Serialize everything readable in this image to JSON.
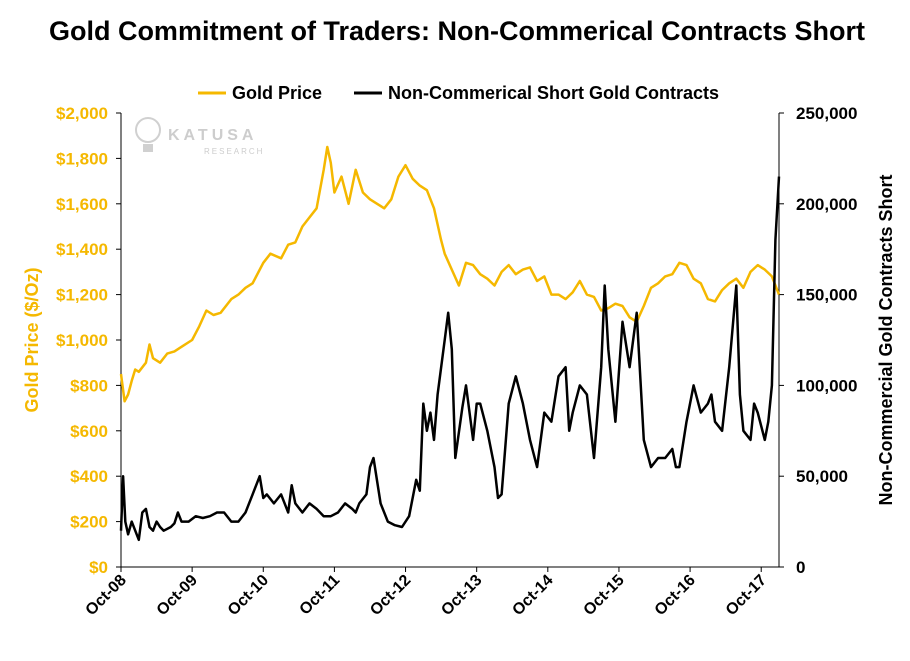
{
  "chart_data": {
    "type": "line",
    "title": "Gold Commitment of Traders: Non-Commerical Contracts Short",
    "watermark": {
      "brand": "KATUSA",
      "sub": "RESEARCH"
    },
    "colors": {
      "gold": "#F5B800",
      "contracts": "#000000",
      "axis": "#000000"
    },
    "x_range": [
      2008.75,
      2018.0
    ],
    "x_ticks": [
      {
        "label": "Oct-08",
        "value": 2008.75
      },
      {
        "label": "Oct-09",
        "value": 2009.75
      },
      {
        "label": "Oct-10",
        "value": 2010.75
      },
      {
        "label": "Oct-11",
        "value": 2011.75
      },
      {
        "label": "Oct-12",
        "value": 2012.75
      },
      {
        "label": "Oct-13",
        "value": 2013.75
      },
      {
        "label": "Oct-14",
        "value": 2014.75
      },
      {
        "label": "Oct-15",
        "value": 2015.75
      },
      {
        "label": "Oct-16",
        "value": 2016.75
      },
      {
        "label": "Oct-17",
        "value": 2017.75
      }
    ],
    "y_left": {
      "label": "Gold Price ($/Oz)",
      "range": [
        0,
        2000
      ],
      "ticks": [
        {
          "value": 0,
          "label": "$0"
        },
        {
          "value": 200,
          "label": "$200"
        },
        {
          "value": 400,
          "label": "$400"
        },
        {
          "value": 600,
          "label": "$600"
        },
        {
          "value": 800,
          "label": "$800"
        },
        {
          "value": 1000,
          "label": "$1,000"
        },
        {
          "value": 1200,
          "label": "$1,200"
        },
        {
          "value": 1400,
          "label": "$1,400"
        },
        {
          "value": 1600,
          "label": "$1,600"
        },
        {
          "value": 1800,
          "label": "$1,800"
        },
        {
          "value": 2000,
          "label": "$2,000"
        }
      ]
    },
    "y_right": {
      "label": "Non-Commercial Gold Contracts Short",
      "range": [
        0,
        250000
      ],
      "ticks": [
        {
          "value": 0,
          "label": "0"
        },
        {
          "value": 50000,
          "label": "50,000"
        },
        {
          "value": 100000,
          "label": "100,000"
        },
        {
          "value": 150000,
          "label": "150,000"
        },
        {
          "value": 200000,
          "label": "200,000"
        },
        {
          "value": 250000,
          "label": "250,000"
        }
      ]
    },
    "legend_position": "top-center",
    "series": [
      {
        "name": "Gold Price",
        "axis": "left",
        "color": "#F5B800",
        "x": [
          2008.75,
          2008.8,
          2008.85,
          2008.9,
          2008.95,
          2009.0,
          2009.1,
          2009.15,
          2009.2,
          2009.3,
          2009.4,
          2009.5,
          2009.6,
          2009.75,
          2009.85,
          2009.95,
          2010.05,
          2010.15,
          2010.3,
          2010.4,
          2010.5,
          2010.6,
          2010.75,
          2010.85,
          2011.0,
          2011.1,
          2011.2,
          2011.3,
          2011.4,
          2011.5,
          2011.6,
          2011.65,
          2011.7,
          2011.75,
          2011.85,
          2011.95,
          2012.05,
          2012.15,
          2012.25,
          2012.35,
          2012.45,
          2012.55,
          2012.65,
          2012.75,
          2012.85,
          2012.95,
          2013.05,
          2013.15,
          2013.25,
          2013.3,
          2013.4,
          2013.5,
          2013.6,
          2013.7,
          2013.8,
          2013.9,
          2014.0,
          2014.1,
          2014.2,
          2014.3,
          2014.4,
          2014.5,
          2014.6,
          2014.7,
          2014.8,
          2014.9,
          2015.0,
          2015.1,
          2015.2,
          2015.3,
          2015.4,
          2015.5,
          2015.6,
          2015.7,
          2015.8,
          2015.9,
          2016.0,
          2016.1,
          2016.2,
          2016.3,
          2016.4,
          2016.5,
          2016.6,
          2016.7,
          2016.8,
          2016.9,
          2017.0,
          2017.1,
          2017.2,
          2017.3,
          2017.4,
          2017.5,
          2017.6,
          2017.7,
          2017.8,
          2017.9,
          2018.0
        ],
        "values": [
          850,
          730,
          760,
          820,
          870,
          860,
          900,
          980,
          920,
          900,
          940,
          950,
          970,
          1000,
          1060,
          1130,
          1110,
          1120,
          1180,
          1200,
          1230,
          1250,
          1340,
          1380,
          1360,
          1420,
          1430,
          1500,
          1540,
          1580,
          1750,
          1850,
          1780,
          1650,
          1720,
          1600,
          1750,
          1650,
          1620,
          1600,
          1580,
          1620,
          1720,
          1770,
          1710,
          1680,
          1660,
          1580,
          1440,
          1380,
          1310,
          1240,
          1340,
          1330,
          1290,
          1270,
          1240,
          1300,
          1330,
          1290,
          1310,
          1320,
          1260,
          1280,
          1200,
          1200,
          1180,
          1210,
          1260,
          1200,
          1190,
          1130,
          1140,
          1160,
          1150,
          1100,
          1080,
          1150,
          1230,
          1250,
          1280,
          1290,
          1340,
          1330,
          1270,
          1250,
          1180,
          1170,
          1220,
          1250,
          1270,
          1230,
          1300,
          1330,
          1310,
          1280,
          1200
        ]
      },
      {
        "name": "Non-Commerical Short Gold Contracts",
        "axis": "right",
        "color": "#000000",
        "x": [
          2008.75,
          2008.78,
          2008.81,
          2008.85,
          2008.9,
          2009.0,
          2009.05,
          2009.1,
          2009.15,
          2009.2,
          2009.25,
          2009.3,
          2009.35,
          2009.45,
          2009.5,
          2009.55,
          2009.6,
          2009.7,
          2009.8,
          2009.9,
          2010.0,
          2010.1,
          2010.2,
          2010.3,
          2010.4,
          2010.5,
          2010.6,
          2010.7,
          2010.75,
          2010.8,
          2010.9,
          2011.0,
          2011.1,
          2011.15,
          2011.2,
          2011.3,
          2011.4,
          2011.5,
          2011.6,
          2011.7,
          2011.8,
          2011.9,
          2012.0,
          2012.05,
          2012.1,
          2012.2,
          2012.25,
          2012.3,
          2012.4,
          2012.5,
          2012.6,
          2012.7,
          2012.8,
          2012.9,
          2012.95,
          2013.0,
          2013.05,
          2013.1,
          2013.15,
          2013.2,
          2013.3,
          2013.35,
          2013.4,
          2013.45,
          2013.55,
          2013.6,
          2013.7,
          2013.75,
          2013.8,
          2013.9,
          2014.0,
          2014.05,
          2014.1,
          2014.2,
          2014.3,
          2014.4,
          2014.5,
          2014.6,
          2014.7,
          2014.8,
          2014.9,
          2015.0,
          2015.05,
          2015.1,
          2015.2,
          2015.3,
          2015.4,
          2015.5,
          2015.55,
          2015.6,
          2015.7,
          2015.8,
          2015.9,
          2016.0,
          2016.1,
          2016.2,
          2016.3,
          2016.4,
          2016.5,
          2016.55,
          2016.6,
          2016.7,
          2016.8,
          2016.9,
          2017.0,
          2017.05,
          2017.1,
          2017.2,
          2017.3,
          2017.4,
          2017.45,
          2017.5,
          2017.6,
          2017.65,
          2017.7,
          2017.8,
          2017.85,
          2017.9,
          2017.95,
          2018.0
        ],
        "values": [
          20000,
          50000,
          25000,
          18000,
          25000,
          15000,
          30000,
          32000,
          22000,
          20000,
          25000,
          22000,
          20000,
          22000,
          24000,
          30000,
          25000,
          25000,
          28000,
          27000,
          28000,
          30000,
          30000,
          25000,
          25000,
          30000,
          40000,
          50000,
          38000,
          40000,
          35000,
          40000,
          30000,
          45000,
          35000,
          30000,
          35000,
          32000,
          28000,
          28000,
          30000,
          35000,
          32000,
          30000,
          35000,
          40000,
          55000,
          60000,
          35000,
          25000,
          23000,
          22000,
          28000,
          48000,
          42000,
          90000,
          75000,
          85000,
          70000,
          95000,
          125000,
          140000,
          120000,
          60000,
          88000,
          100000,
          70000,
          90000,
          90000,
          75000,
          55000,
          38000,
          40000,
          90000,
          105000,
          90000,
          70000,
          55000,
          85000,
          80000,
          105000,
          110000,
          75000,
          85000,
          100000,
          95000,
          60000,
          110000,
          155000,
          120000,
          80000,
          135000,
          110000,
          140000,
          70000,
          55000,
          60000,
          60000,
          65000,
          55000,
          55000,
          80000,
          100000,
          85000,
          90000,
          95000,
          80000,
          75000,
          110000,
          155000,
          95000,
          75000,
          70000,
          90000,
          85000,
          70000,
          80000,
          100000,
          180000,
          215000
        ]
      }
    ]
  }
}
